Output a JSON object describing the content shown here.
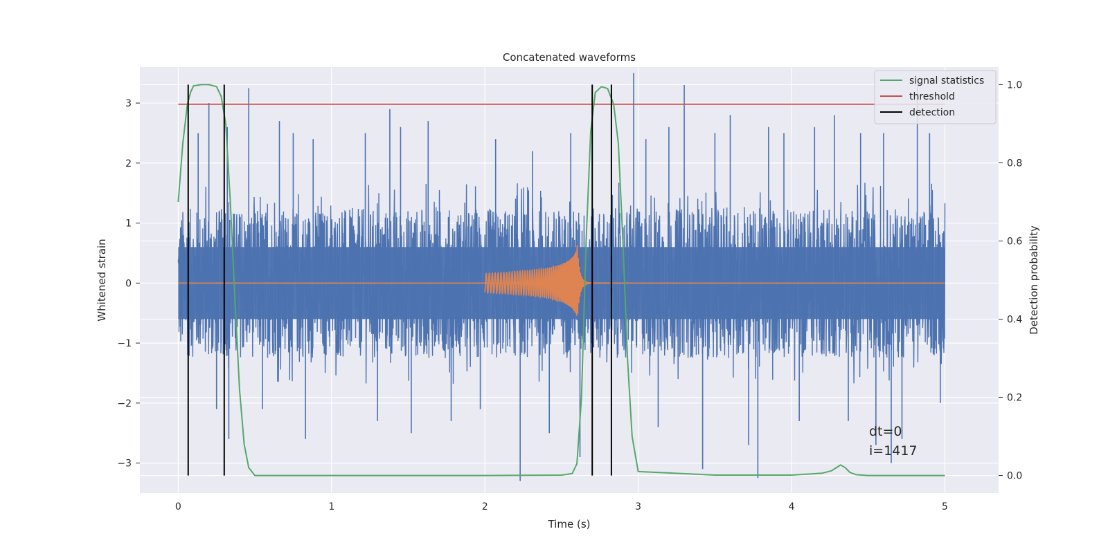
{
  "chart_data": {
    "type": "line",
    "title": "Concatenated waveforms",
    "xlabel": "Time (s)",
    "ylabel": "Whitened strain",
    "ylabel_right": "Detection probability",
    "xlim": [
      -0.25,
      5.35
    ],
    "ylim": [
      -3.5,
      3.6
    ],
    "ylim_right": [
      -0.045,
      1.045
    ],
    "xticks": [
      0,
      1,
      2,
      3,
      4,
      5
    ],
    "xtick_labels": [
      "0",
      "1",
      "2",
      "3",
      "4",
      "5"
    ],
    "yticks": [
      -3,
      -2,
      -1,
      0,
      1,
      2,
      3
    ],
    "ytick_labels": [
      "−3",
      "−2",
      "−1",
      "0",
      "1",
      "2",
      "3"
    ],
    "yticks_right": [
      0.0,
      0.2,
      0.4,
      0.6,
      0.8,
      1.0
    ],
    "ytick_right_labels": [
      "0.0",
      "0.2",
      "0.4",
      "0.6",
      "0.8",
      "1.0"
    ],
    "grid": true,
    "legend_position": "top-right",
    "colors": {
      "background": "#eaeaf2",
      "grid": "#ffffff",
      "noise": "#4c72b0",
      "injected_signal": "#dd8452",
      "signal_statistics": "#55a868",
      "threshold": "#c44e52",
      "detection": "#000000"
    },
    "series": [
      {
        "name": "signal statistics",
        "axis": "right",
        "x": [
          0,
          0.03,
          0.06,
          0.08,
          0.1,
          0.15,
          0.2,
          0.25,
          0.28,
          0.31,
          0.34,
          0.37,
          0.4,
          0.43,
          0.46,
          0.5,
          1.0,
          2.0,
          2.5,
          2.57,
          2.6,
          2.63,
          2.66,
          2.69,
          2.72,
          2.76,
          2.8,
          2.84,
          2.87,
          2.9,
          2.93,
          2.96,
          3.0,
          3.5,
          4.0,
          4.2,
          4.26,
          4.3,
          4.32,
          4.35,
          4.38,
          4.42,
          4.5,
          5.0
        ],
        "y": [
          0.7,
          0.85,
          0.95,
          0.98,
          0.997,
          1.0,
          1.0,
          0.995,
          0.97,
          0.9,
          0.7,
          0.45,
          0.22,
          0.08,
          0.02,
          0.0,
          0.0,
          0.0,
          0.001,
          0.005,
          0.03,
          0.2,
          0.6,
          0.88,
          0.98,
          0.995,
          0.99,
          0.95,
          0.85,
          0.6,
          0.3,
          0.1,
          0.01,
          0.001,
          0.001,
          0.006,
          0.012,
          0.022,
          0.027,
          0.02,
          0.008,
          0.002,
          0.0,
          0.0
        ]
      },
      {
        "name": "threshold",
        "axis": "right",
        "x": [
          0,
          5
        ],
        "y": [
          0.95,
          0.95
        ]
      },
      {
        "name": "detection",
        "axis": "right",
        "type": "vlines",
        "x": [
          0.065,
          0.3,
          2.7,
          2.825
        ],
        "ymin": 0.0,
        "ymax": 1.0
      },
      {
        "axis": "left",
        "description_kind": "noise",
        "x_range": [
          0,
          5
        ],
        "core_amplitude": 1.25,
        "spikes": [
          {
            "x": 0.13,
            "y": 2.5
          },
          {
            "x": 0.2,
            "y": 3.0
          },
          {
            "x": 0.25,
            "y": -2.1
          },
          {
            "x": 0.32,
            "y": 2.6
          },
          {
            "x": 0.33,
            "y": -2.6
          },
          {
            "x": 0.46,
            "y": 3.25
          },
          {
            "x": 0.55,
            "y": -2.1
          },
          {
            "x": 0.66,
            "y": 2.7
          },
          {
            "x": 0.75,
            "y": 2.5
          },
          {
            "x": 0.83,
            "y": -2.6
          },
          {
            "x": 0.88,
            "y": 2.4
          },
          {
            "x": 1.22,
            "y": 2.5
          },
          {
            "x": 1.3,
            "y": -2.3
          },
          {
            "x": 1.38,
            "y": 2.9
          },
          {
            "x": 1.45,
            "y": 2.6
          },
          {
            "x": 1.52,
            "y": -2.5
          },
          {
            "x": 1.63,
            "y": 2.7
          },
          {
            "x": 1.78,
            "y": -2.3
          },
          {
            "x": 1.97,
            "y": -2.1
          },
          {
            "x": 2.07,
            "y": 2.4
          },
          {
            "x": 2.23,
            "y": -3.3
          },
          {
            "x": 2.31,
            "y": 2.2
          },
          {
            "x": 2.42,
            "y": -2.5
          },
          {
            "x": 2.56,
            "y": 2.5
          },
          {
            "x": 2.62,
            "y": -2.9
          },
          {
            "x": 2.97,
            "y": 3.5
          },
          {
            "x": 3.05,
            "y": 2.4
          },
          {
            "x": 3.13,
            "y": -2.4
          },
          {
            "x": 3.2,
            "y": 2.6
          },
          {
            "x": 3.3,
            "y": 3.3
          },
          {
            "x": 3.42,
            "y": -3.1
          },
          {
            "x": 3.5,
            "y": 2.5
          },
          {
            "x": 3.6,
            "y": 2.8
          },
          {
            "x": 3.72,
            "y": -2.7
          },
          {
            "x": 3.78,
            "y": -3.25
          },
          {
            "x": 3.85,
            "y": 2.6
          },
          {
            "x": 3.95,
            "y": 2.5
          },
          {
            "x": 4.05,
            "y": -2.3
          },
          {
            "x": 4.15,
            "y": 2.6
          },
          {
            "x": 4.28,
            "y": 2.8
          },
          {
            "x": 4.37,
            "y": -2.3
          },
          {
            "x": 4.45,
            "y": 2.5
          },
          {
            "x": 4.55,
            "y": -2.7
          },
          {
            "x": 4.6,
            "y": 2.5
          },
          {
            "x": 4.65,
            "y": -3.0
          },
          {
            "x": 4.72,
            "y": -2.6
          },
          {
            "x": 4.82,
            "y": 3.4
          },
          {
            "x": 4.9,
            "y": 2.5
          },
          {
            "x": 4.97,
            "y": -2.0
          }
        ]
      },
      {
        "axis": "left",
        "description_kind": "chirp",
        "x_start": 2.0,
        "x_merger": 2.6,
        "x_end": 2.8,
        "initial_amplitude": 0.12,
        "peak_amplitude": 0.7,
        "min_amplitude": -1.0
      },
      {
        "axis": "left",
        "description_kind": "zero-line",
        "x": [
          0,
          5
        ],
        "y": [
          0,
          0
        ]
      }
    ],
    "annotations": [
      "dt=0",
      "i=1417"
    ]
  }
}
